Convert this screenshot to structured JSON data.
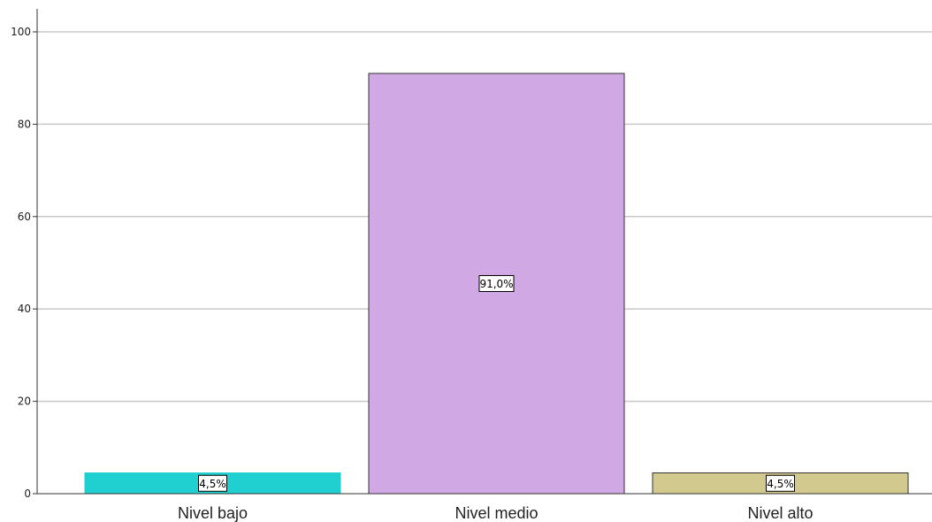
{
  "chart_data": {
    "type": "bar",
    "categories": [
      "Nivel bajo",
      "Nivel medio",
      "Nivel alto"
    ],
    "values": [
      4.5,
      91.0,
      4.5
    ],
    "data_labels": [
      "4,5%",
      "91,0%",
      "4,5%"
    ],
    "colors": [
      "#20d0d0",
      "#d0a8e4",
      "#d2c98e"
    ],
    "bar_stroke_colors": [
      "#20d0d0",
      "#333333",
      "#333333"
    ],
    "gridline_color": "#c8c8c8",
    "title": "",
    "xlabel": "",
    "ylabel": "",
    "ylim": [
      0,
      100
    ],
    "yticks": [
      0,
      20,
      40,
      60,
      80,
      100
    ],
    "ytick_labels": [
      "0",
      "20",
      "40",
      "60",
      "80",
      "100"
    ],
    "grid": true,
    "legend": "none"
  }
}
